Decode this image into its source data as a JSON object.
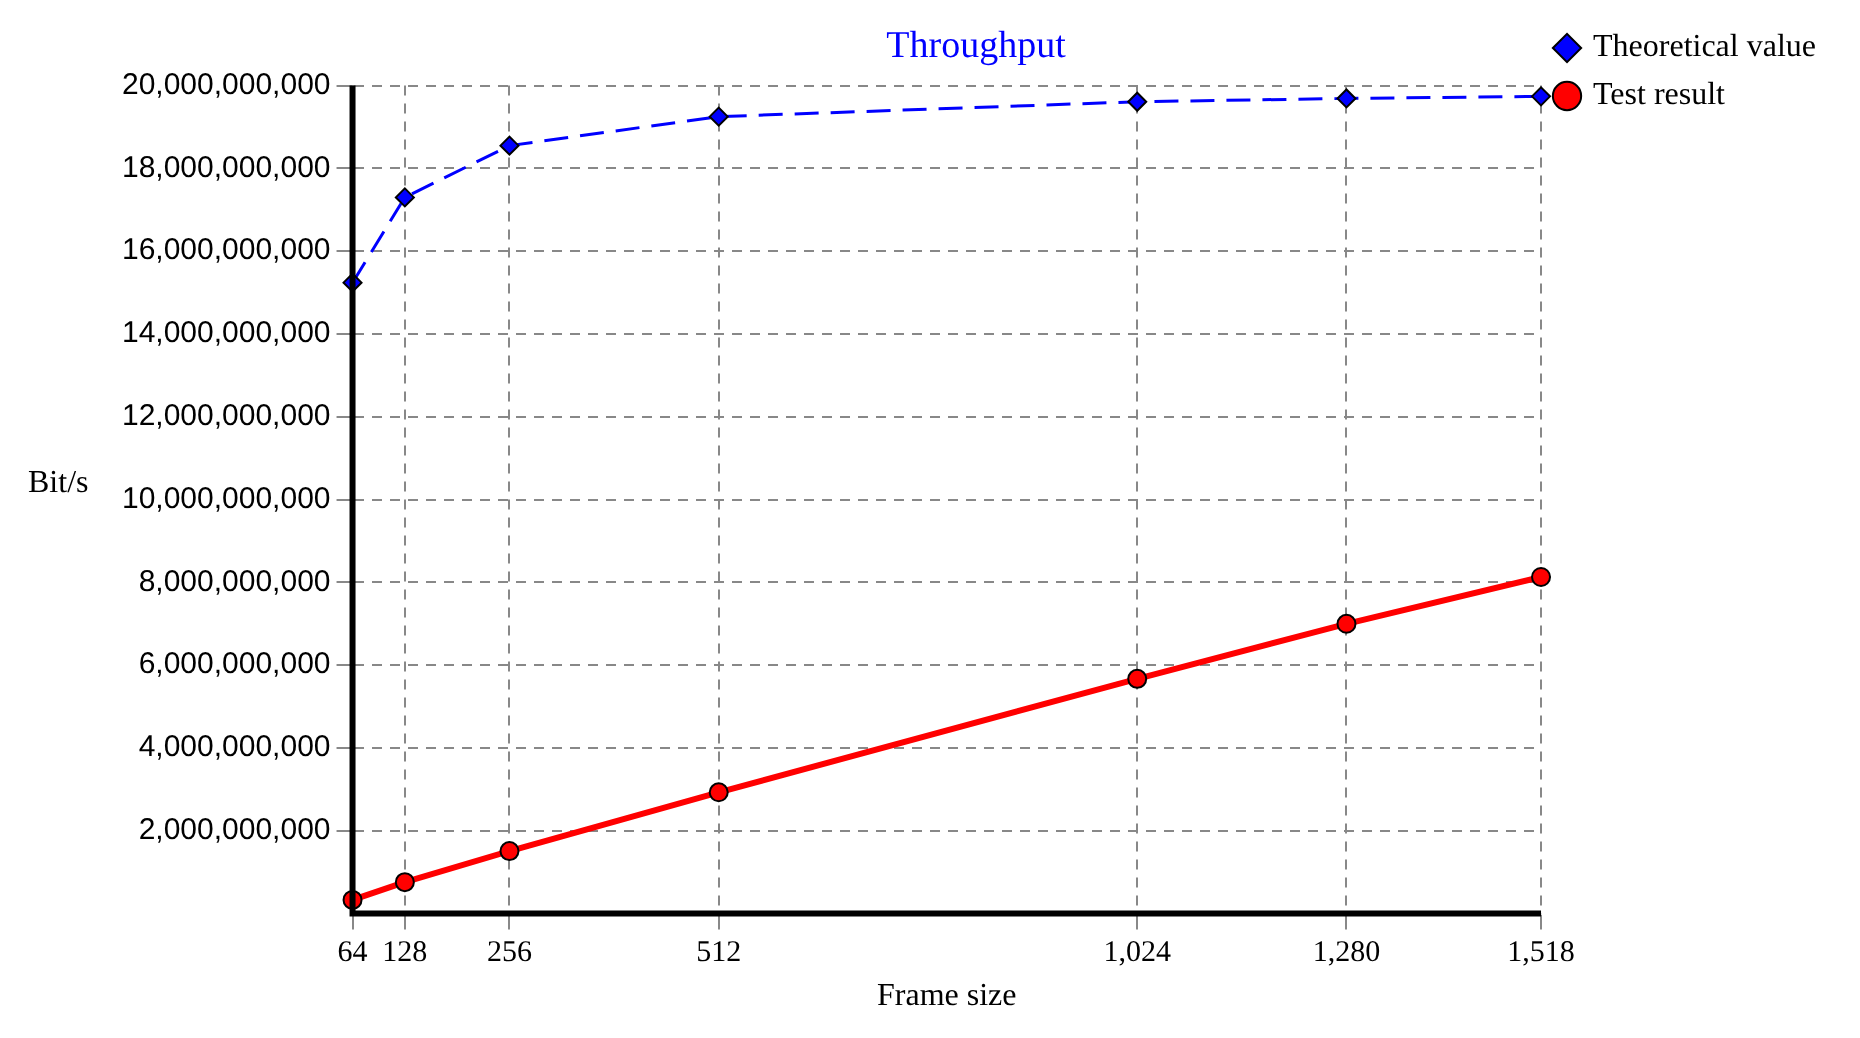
{
  "chart_data": {
    "type": "line",
    "title": "Throughput",
    "xlabel": "Frame size",
    "ylabel": "Bit/s",
    "x": [
      64,
      128,
      256,
      512,
      1024,
      1280,
      1518
    ],
    "series": [
      {
        "name": "Theoretical value",
        "color": "#0000ff",
        "values": [
          15240000000,
          17300000000,
          18550000000,
          19250000000,
          19610000000,
          19690000000,
          19740000000
        ],
        "marker": "diamond",
        "line_style": "dashed"
      },
      {
        "name": "Test result",
        "color": "#ff0000",
        "values": [
          330000000,
          760000000,
          1510000000,
          2930000000,
          5670000000,
          7000000000,
          8130000000
        ],
        "marker": "circle",
        "line_style": "solid"
      }
    ],
    "xlim": [
      64,
      1518
    ],
    "xticks": [
      64,
      128,
      256,
      512,
      {
        "value": 1024,
        "label": "1,024"
      },
      {
        "value": 1280,
        "label": "1,280"
      },
      {
        "value": 1518,
        "label": "1,518"
      }
    ],
    "ylim": [
      0,
      20000000000
    ],
    "yticks": [
      {
        "value": 2000000000,
        "label": "2,000,000,000"
      },
      {
        "value": 4000000000,
        "label": "4,000,000,000"
      },
      {
        "value": 6000000000,
        "label": "6,000,000,000"
      },
      {
        "value": 8000000000,
        "label": "8,000,000,000"
      },
      {
        "value": 10000000000,
        "label": "10,000,000,000"
      },
      {
        "value": 12000000000,
        "label": "12,000,000,000"
      },
      {
        "value": 14000000000,
        "label": "14,000,000,000"
      },
      {
        "value": 16000000000,
        "label": "16,000,000,000"
      },
      {
        "value": 18000000000,
        "label": "18,000,000,000"
      },
      {
        "value": 20000000000,
        "label": "20,000,000,000"
      }
    ],
    "grid": true,
    "legend": "top right"
  }
}
